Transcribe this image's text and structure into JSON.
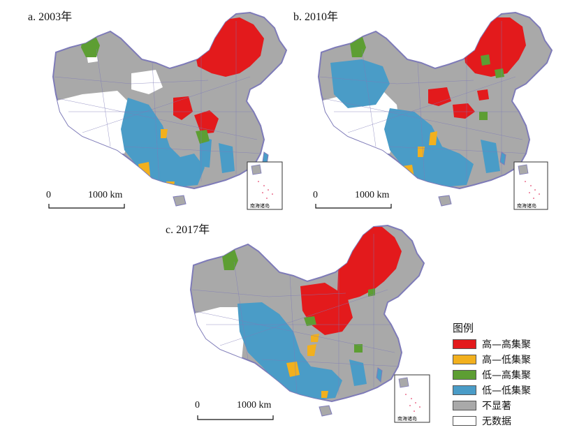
{
  "panels": [
    {
      "title": "a. 2003年",
      "scale_zero": "0",
      "scale_label": "1000 km",
      "inset_label": "南海诸岛"
    },
    {
      "title": "b. 2010年",
      "scale_zero": "0",
      "scale_label": "1000 km",
      "inset_label": "南海诸岛"
    },
    {
      "title": "c. 2017年",
      "scale_zero": "0",
      "scale_label": "1000 km",
      "inset_label": "南海诸岛"
    }
  ],
  "legend": {
    "title": "图例",
    "items": [
      {
        "label": "高—高集聚",
        "color": "#e31a1c"
      },
      {
        "label": "高—低集聚",
        "color": "#f2b01e"
      },
      {
        "label": "低—高集聚",
        "color": "#5d9e33"
      },
      {
        "label": "低—低集聚",
        "color": "#4a9cc7"
      },
      {
        "label": "不显著",
        "color": "#a9a9a9"
      },
      {
        "label": "无数据",
        "color": "#ffffff"
      }
    ]
  },
  "colors": {
    "border": "#7e7bb8",
    "grey": "#a9a9a9",
    "red": "#e31a1c",
    "orange": "#f2b01e",
    "green": "#5d9e33",
    "blue": "#4a9cc7",
    "nodata": "#ffffff"
  }
}
